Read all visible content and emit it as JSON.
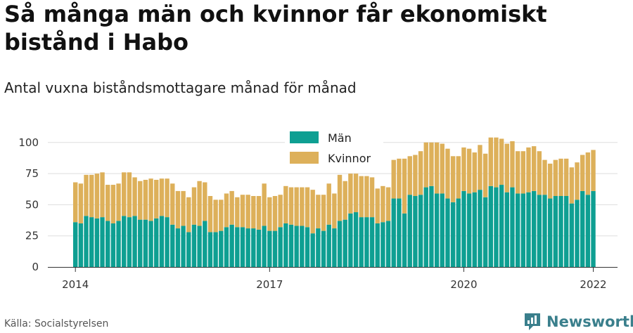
{
  "title": "Så många män och kvinnor får ekonomiskt bistånd i Habo",
  "subtitle": "Antal vuxna biståndsmottagare månad för månad",
  "source": "Källa: Socialstyrelsen",
  "brand": "Newsworthy",
  "colors": {
    "men": "#0e9f92",
    "women": "#ddb05a",
    "grid": "#dddddd",
    "brand": "#3a7f8c"
  },
  "chart_data": {
    "type": "bar",
    "stacked": true,
    "x_start": "2014-01",
    "x_end": "2022-01",
    "ylim": [
      0,
      110
    ],
    "yticks": [
      0,
      25,
      50,
      75,
      100
    ],
    "xticks": [
      {
        "label": "2014",
        "x": "2014-01"
      },
      {
        "label": "2017",
        "x": "2017-01"
      },
      {
        "label": "2020",
        "x": "2020-01"
      },
      {
        "label": "2022",
        "x": "2022-01"
      }
    ],
    "grid": true,
    "legend_position": "top-center",
    "series": [
      {
        "name": "Män",
        "values": [
          36,
          35,
          41,
          40,
          39,
          40,
          37,
          35,
          37,
          41,
          40,
          41,
          38,
          38,
          37,
          39,
          41,
          40,
          34,
          31,
          33,
          28,
          34,
          33,
          37,
          28,
          28,
          29,
          32,
          34,
          32,
          32,
          31,
          31,
          30,
          33,
          29,
          29,
          32,
          35,
          34,
          33,
          33,
          32,
          27,
          31,
          29,
          34,
          31,
          37,
          38,
          43,
          44,
          40,
          40,
          40,
          35,
          36,
          37,
          55,
          55,
          43,
          58,
          57,
          58,
          64,
          65,
          59,
          59,
          55,
          52,
          55,
          61,
          59,
          60,
          62,
          56,
          65,
          64,
          66,
          60,
          64,
          59,
          59,
          60,
          61,
          58,
          58,
          55,
          57,
          57,
          57,
          51,
          54,
          61,
          58,
          61
        ]
      },
      {
        "name": "Kvinnor",
        "values": [
          32,
          32,
          33,
          34,
          36,
          36,
          29,
          31,
          30,
          35,
          36,
          31,
          31,
          32,
          34,
          31,
          30,
          31,
          33,
          30,
          28,
          28,
          30,
          36,
          31,
          29,
          26,
          25,
          27,
          27,
          24,
          26,
          27,
          26,
          27,
          34,
          27,
          28,
          26,
          30,
          30,
          31,
          31,
          32,
          35,
          27,
          29,
          33,
          28,
          37,
          31,
          32,
          31,
          33,
          33,
          32,
          28,
          29,
          27,
          31,
          32,
          44,
          31,
          33,
          35,
          36,
          35,
          41,
          40,
          40,
          37,
          34,
          35,
          36,
          32,
          36,
          35,
          39,
          40,
          37,
          39,
          37,
          34,
          34,
          36,
          36,
          35,
          28,
          28,
          29,
          30,
          30,
          29,
          30,
          29,
          34,
          33
        ]
      }
    ]
  }
}
